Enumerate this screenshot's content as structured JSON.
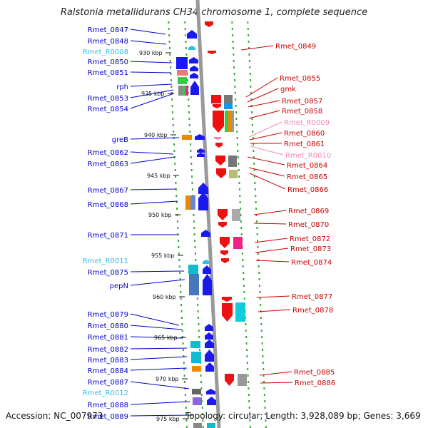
{
  "title": "Ralstonia metallidurans CH34 chromosome 1, complete sequence",
  "footer": {
    "accession": "Accession: NC_007973",
    "topology": "Topology: circular; Length: 3,928,089 bp; Genes: 3,669"
  },
  "colors": {
    "left_label": "#0000cc",
    "rna_left_label": "#33bbee",
    "right_label": "#cc0000",
    "rna_right_label": "#ee88bb",
    "backbone": "#999999",
    "dots": "#33aa33"
  },
  "kbp_ticks": [
    "930 kbp",
    "935 kbp",
    "940 kbp",
    "945 kbp",
    "950 kbp",
    "955 kbp",
    "960 kbp",
    "965 kbp",
    "970 kbp",
    "975 kbp"
  ],
  "left_genes": [
    {
      "name": "Rmet_0847",
      "rna": false
    },
    {
      "name": "Rmet_0848",
      "rna": false
    },
    {
      "name": "Rmet_R0008",
      "rna": true
    },
    {
      "name": "Rmet_0850",
      "rna": false
    },
    {
      "name": "Rmet_0851",
      "rna": false
    },
    {
      "name": "rph",
      "rna": false
    },
    {
      "name": "Rmet_0853",
      "rna": false
    },
    {
      "name": "Rmet_0854",
      "rna": false
    },
    {
      "name": "greB",
      "rna": false
    },
    {
      "name": "Rmet_0862",
      "rna": false
    },
    {
      "name": "Rmet_0863",
      "rna": false
    },
    {
      "name": "Rmet_0867",
      "rna": false
    },
    {
      "name": "Rmet_0868",
      "rna": false
    },
    {
      "name": "Rmet_0871",
      "rna": false
    },
    {
      "name": "Rmet_R0011",
      "rna": true
    },
    {
      "name": "Rmet_0875",
      "rna": false
    },
    {
      "name": "pepN",
      "rna": false
    },
    {
      "name": "Rmet_0879",
      "rna": false
    },
    {
      "name": "Rmet_0880",
      "rna": false
    },
    {
      "name": "Rmet_0881",
      "rna": false
    },
    {
      "name": "Rmet_0882",
      "rna": false
    },
    {
      "name": "Rmet_0883",
      "rna": false
    },
    {
      "name": "Rmet_0884",
      "rna": false
    },
    {
      "name": "Rmet_0887",
      "rna": false
    },
    {
      "name": "Rmet_R0012",
      "rna": true
    },
    {
      "name": "Rmet_0888",
      "rna": false
    },
    {
      "name": "Rmet_0889",
      "rna": false
    }
  ],
  "right_genes": [
    {
      "name": "Rmet_0849",
      "rna": false
    },
    {
      "name": "Rmet_0855",
      "rna": false
    },
    {
      "name": "gmk",
      "rna": false
    },
    {
      "name": "Rmet_0857",
      "rna": false
    },
    {
      "name": "Rmet_0858",
      "rna": false
    },
    {
      "name": "Rmet_R0009",
      "rna": true
    },
    {
      "name": "Rmet_0860",
      "rna": false
    },
    {
      "name": "Rmet_0861",
      "rna": false
    },
    {
      "name": "Rmet_R0010",
      "rna": true
    },
    {
      "name": "Rmet_0864",
      "rna": false
    },
    {
      "name": "Rmet_0865",
      "rna": false
    },
    {
      "name": "Rmet_0866",
      "rna": false
    },
    {
      "name": "Rmet_0869",
      "rna": false
    },
    {
      "name": "Rmet_0870",
      "rna": false
    },
    {
      "name": "Rmet_0872",
      "rna": false
    },
    {
      "name": "Rmet_0873",
      "rna": false
    },
    {
      "name": "Rmet_0874",
      "rna": false
    },
    {
      "name": "Rmet_0877",
      "rna": false
    },
    {
      "name": "Rmet_0878",
      "rna": false
    },
    {
      "name": "Rmet_0885",
      "rna": false
    },
    {
      "name": "Rmet_0886",
      "rna": false
    }
  ]
}
